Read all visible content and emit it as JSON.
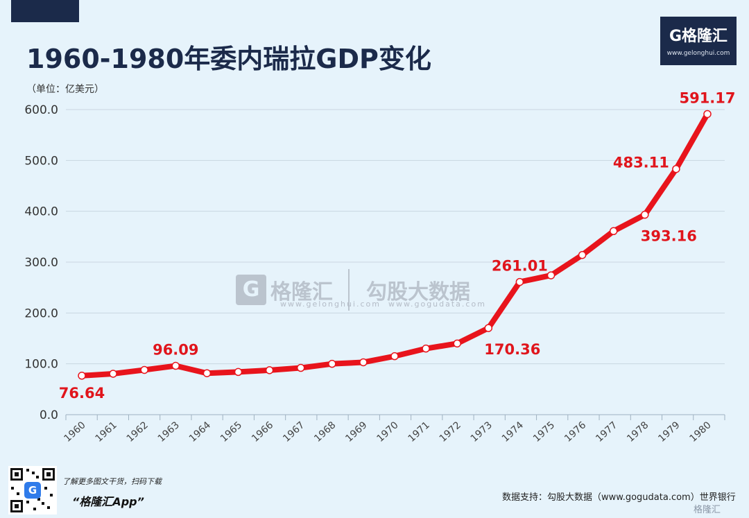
{
  "header": {
    "title": "1960-1980年委内瑞拉GDP变化",
    "unit": "（单位：亿美元）"
  },
  "logo": {
    "icon": "g-logo-icon",
    "name": "G格隆汇",
    "url": "www.gelonghui.com"
  },
  "watermark": {
    "gelonghui_name": "格隆汇",
    "gelonghui_url": "www.gelonghui.com",
    "gogu_name": "勾股大数据",
    "gogu_url": "www.gogudata.com"
  },
  "footer": {
    "promo": "了解更多图文干货，扫码下载",
    "app": "“格隆汇App”",
    "source": "数据支持：勾股大数据（www.gogudata.com）世界银行",
    "corner_mark": "格隆汇"
  },
  "colors": {
    "line": "#e8141c",
    "title": "#1b2a4a",
    "background": "#e6f3fb",
    "grid": "#c9d6e0"
  },
  "chart_data": {
    "type": "line",
    "title": "1960-1980年委内瑞拉GDP变化",
    "ylabel": "（单位：亿美元）",
    "xlabel": "",
    "ylim": [
      0,
      600
    ],
    "yticks": [
      0,
      100,
      200,
      300,
      400,
      500,
      600
    ],
    "ytick_labels": [
      "0.0",
      "100.0",
      "200.0",
      "300.0",
      "400.0",
      "500.0",
      "600.0"
    ],
    "grid": true,
    "categories": [
      "1960",
      "1961",
      "1962",
      "1963",
      "1964",
      "1965",
      "1966",
      "1967",
      "1968",
      "1969",
      "1970",
      "1971",
      "1972",
      "1973",
      "1974",
      "1975",
      "1976",
      "1977",
      "1978",
      "1979",
      "1980"
    ],
    "values": [
      76.64,
      80.5,
      88.0,
      96.09,
      81.5,
      84.0,
      87.5,
      92.0,
      100.0,
      103.0,
      115.0,
      130.0,
      140.0,
      170.36,
      261.01,
      274.0,
      314.0,
      361.0,
      393.16,
      483.11,
      591.17
    ],
    "data_labels": [
      {
        "index": 0,
        "text": "76.64",
        "pos": "below"
      },
      {
        "index": 3,
        "text": "96.09",
        "pos": "above"
      },
      {
        "index": 13,
        "text": "170.36",
        "pos": "below-right"
      },
      {
        "index": 14,
        "text": "261.01",
        "pos": "above"
      },
      {
        "index": 18,
        "text": "393.16",
        "pos": "below-right"
      },
      {
        "index": 19,
        "text": "483.11",
        "pos": "left"
      },
      {
        "index": 20,
        "text": "591.17",
        "pos": "above"
      }
    ]
  }
}
